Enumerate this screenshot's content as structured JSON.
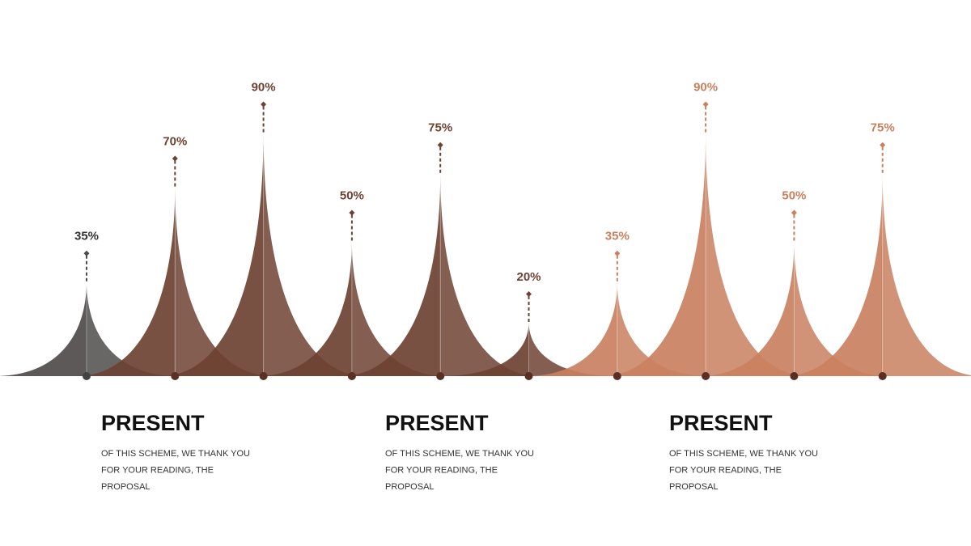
{
  "chart_data": {
    "type": "peak",
    "values": [
      35,
      70,
      90,
      50,
      75,
      20,
      35,
      90,
      50,
      75
    ],
    "value_labels": [
      "35%",
      "70%",
      "90%",
      "50%",
      "75%",
      "20%",
      "35%",
      "90%",
      "50%",
      "75%"
    ],
    "colors": [
      "#4f4b4b",
      "#6e4232",
      "#6e4232",
      "#6e4232",
      "#6e4232",
      "#6e4232",
      "#c9805f",
      "#c9805f",
      "#c9805f",
      "#c9805f"
    ]
  },
  "captions": [
    {
      "title": "PRESENT",
      "lines": [
        "OF THIS SCHEME, WE THANK YOU",
        "FOR YOUR READING, THE",
        "PROPOSAL"
      ]
    },
    {
      "title": "PRESENT",
      "lines": [
        "OF THIS SCHEME, WE THANK YOU",
        "FOR YOUR READING, THE",
        "PROPOSAL"
      ]
    },
    {
      "title": "PRESENT",
      "lines": [
        "OF THIS SCHEME, WE THANK YOU",
        "FOR YOUR READING, THE",
        "PROPOSAL"
      ]
    }
  ]
}
